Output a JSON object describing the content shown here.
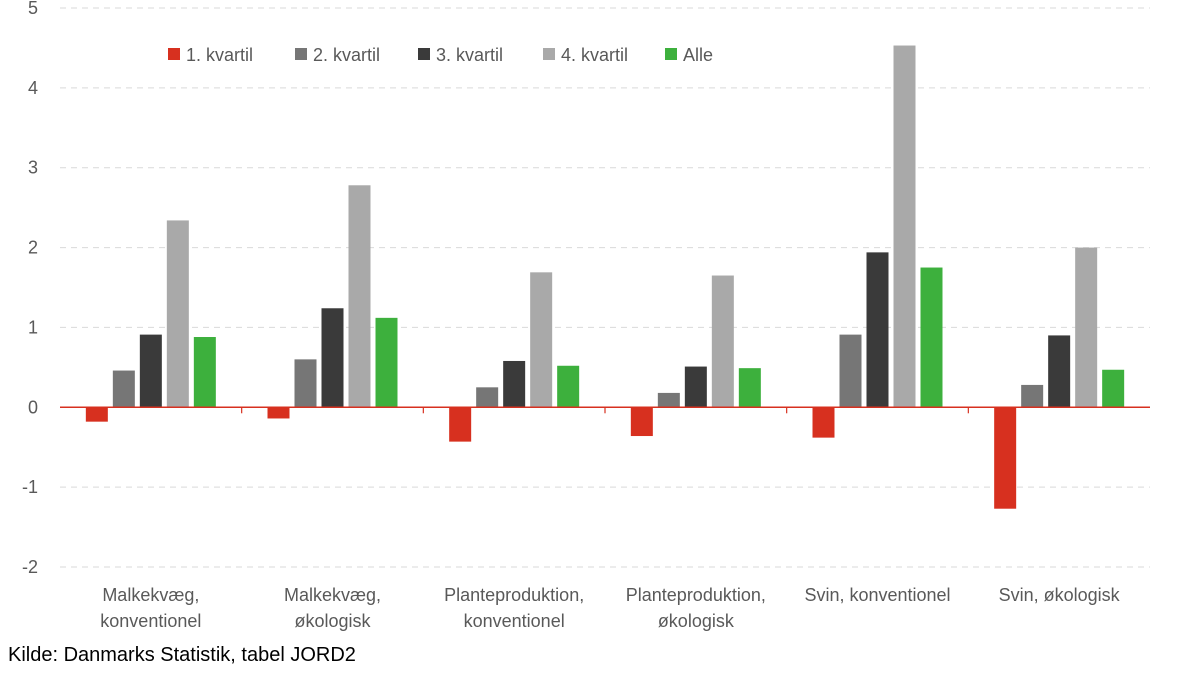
{
  "chart_data": {
    "type": "bar",
    "categories": [
      [
        "Malkekvæg,",
        "konventionel"
      ],
      [
        "Malkekvæg,",
        "økologisk"
      ],
      [
        "Planteproduktion,",
        "konventionel"
      ],
      [
        "Planteproduktion,",
        "økologisk"
      ],
      [
        "Svin, konventionel"
      ],
      [
        "Svin, økologisk"
      ]
    ],
    "series": [
      {
        "name": "1. kvartil",
        "color": "#d7301f",
        "values": [
          -0.18,
          -0.14,
          -0.43,
          -0.36,
          -0.38,
          -1.27
        ]
      },
      {
        "name": "2. kvartil",
        "color": "#767676",
        "values": [
          0.46,
          0.6,
          0.25,
          0.18,
          0.91,
          0.28
        ]
      },
      {
        "name": "3. kvartil",
        "color": "#3a3a3a",
        "values": [
          0.91,
          1.24,
          0.58,
          0.51,
          1.94,
          0.9
        ]
      },
      {
        "name": "4. kvartil",
        "color": "#a9a9a9",
        "values": [
          2.34,
          2.78,
          1.69,
          1.65,
          4.53,
          2.0
        ]
      },
      {
        "name": "Alle",
        "color": "#3db03d",
        "values": [
          0.88,
          1.12,
          0.52,
          0.49,
          1.75,
          0.47
        ]
      }
    ],
    "ylim": [
      -2,
      5
    ],
    "yticks": [
      "5",
      "4",
      "3",
      "2",
      "1",
      "0",
      "-1",
      "-2"
    ],
    "grid": true,
    "legend_position": "top-left",
    "zero_line_color": "#d7301f",
    "title": "",
    "xlabel": "",
    "ylabel": ""
  },
  "source": "Kilde: Danmarks Statistik, tabel JORD2"
}
